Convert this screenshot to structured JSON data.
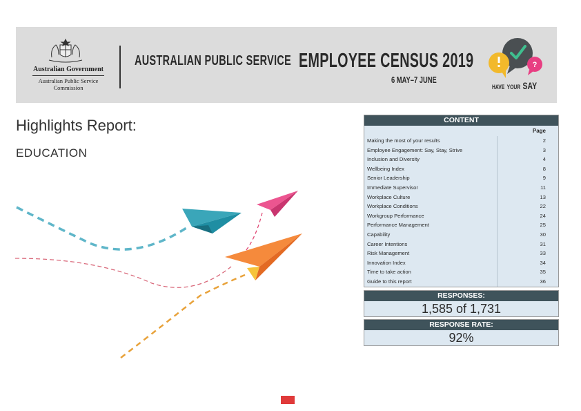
{
  "header": {
    "gov_main": "Australian Government",
    "gov_sub_line1": "Australian Public Service",
    "gov_sub_line2": "Commission",
    "aps_title": "AUSTRALIAN PUBLIC SERVICE",
    "census_title": "EMPLOYEE CENSUS 2019",
    "dates": "6 MAY–7 JUNE",
    "hys_have": "HAVE",
    "hys_your": "YOUR",
    "hys_say": "SAY",
    "colors": {
      "banner": "#dcdcdc",
      "bubble_yellow": "#f2b92b",
      "bubble_dark": "#4a4f52",
      "bubble_pink": "#e83e82",
      "check_green": "#3fbf8f"
    }
  },
  "report": {
    "title": "Highlights Report:",
    "subtitle": "EDUCATION"
  },
  "toc": {
    "heading": "CONTENT",
    "page_label": "Page",
    "items": [
      {
        "title": "Making the most of your results",
        "page": "2"
      },
      {
        "title": "Employee Engagement: Say, Stay, Strive",
        "page": "3"
      },
      {
        "title": "Inclusion and Diversity",
        "page": "4"
      },
      {
        "title": "Wellbeing Index",
        "page": "8"
      },
      {
        "title": "Senior Leadership",
        "page": "9"
      },
      {
        "title": "Immediate Supervisor",
        "page": "11"
      },
      {
        "title": "Workplace Culture",
        "page": "13"
      },
      {
        "title": "Workplace Conditions",
        "page": "22"
      },
      {
        "title": "Workgroup Performance",
        "page": "24"
      },
      {
        "title": "Performance Management",
        "page": "25"
      },
      {
        "title": "Capability",
        "page": "30"
      },
      {
        "title": "Career Intentions",
        "page": "31"
      },
      {
        "title": "Risk Management",
        "page": "33"
      },
      {
        "title": "Innovation Index",
        "page": "34"
      },
      {
        "title": "Time to take action",
        "page": "35"
      },
      {
        "title": "Guide to this report",
        "page": "36"
      }
    ]
  },
  "stats": {
    "responses_label": "RESPONSES:",
    "responses_value": "1,585 of 1,731",
    "rate_label": "RESPONSE RATE:",
    "rate_value": "92%"
  },
  "footer": {
    "logo_color": "#e03a3a"
  }
}
